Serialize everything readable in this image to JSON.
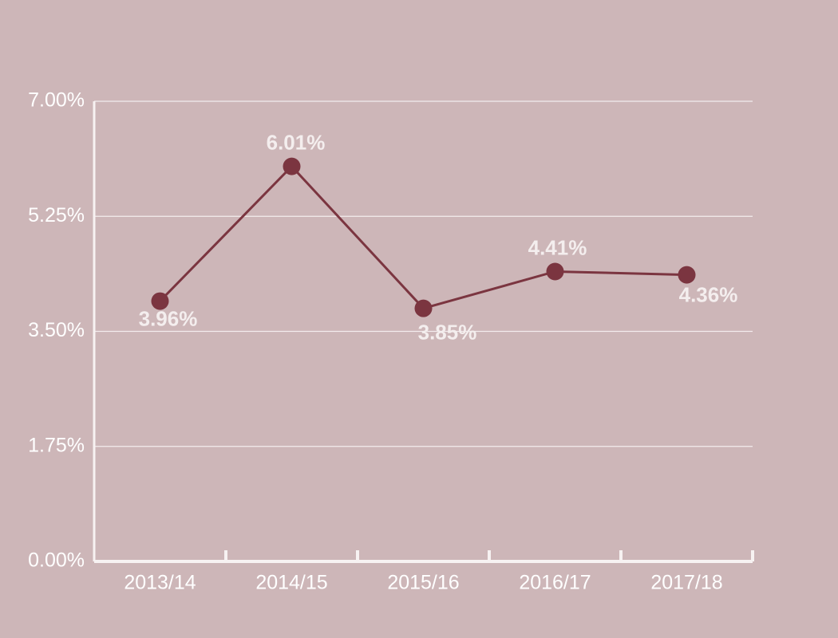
{
  "chart_data": {
    "type": "line",
    "categories": [
      "2013/14",
      "2014/15",
      "2015/16",
      "2016/17",
      "2017/18"
    ],
    "series": [
      {
        "color": "#7b3540",
        "values": [
          3.96,
          6.01,
          3.85,
          4.41,
          4.36
        ],
        "value_labels": [
          "3.96%",
          "6.01%",
          "3.85%",
          "4.41%",
          "4.36%"
        ]
      }
    ],
    "ylim": [
      0,
      7
    ],
    "yticks": [
      {
        "value": 0,
        "label": "0.00%"
      },
      {
        "value": 1.75,
        "label": "1.75%"
      },
      {
        "value": 3.5,
        "label": "3.50%"
      },
      {
        "value": 5.25,
        "label": "5.25%"
      },
      {
        "value": 7,
        "label": "7.00%"
      }
    ],
    "grid": true
  }
}
